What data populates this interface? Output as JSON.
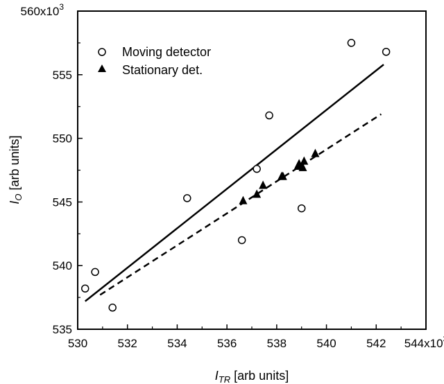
{
  "chart_data": {
    "type": "scatter",
    "xlabel_main": "I",
    "xlabel_sub": "TR",
    "xlabel_rest": " [arb units]",
    "ylabel_main": "I",
    "ylabel_sub": "O",
    "ylabel_rest": " [arb units]",
    "xlim": [
      530,
      544
    ],
    "ylim": [
      535,
      560
    ],
    "x_ticks": [
      530,
      532,
      534,
      536,
      538,
      540,
      542,
      544
    ],
    "x_tick_labels": [
      "530",
      "532",
      "534",
      "536",
      "538",
      "540",
      "542",
      "544x10"
    ],
    "x_tick_exponent": "3",
    "y_ticks": [
      535,
      540,
      545,
      550,
      555,
      560
    ],
    "y_tick_labels": [
      "535",
      "540",
      "545",
      "550",
      "555",
      "560x10"
    ],
    "y_tick_exponent": "3",
    "legend_position": "top-left",
    "series": [
      {
        "name": "Moving detector",
        "marker": "open-circle",
        "x": [
          530.3,
          530.7,
          531.4,
          534.4,
          536.6,
          537.2,
          537.7,
          539.0,
          541.0,
          542.4
        ],
        "y": [
          538.2,
          539.5,
          536.7,
          545.3,
          542.0,
          547.6,
          551.8,
          544.5,
          557.5,
          556.8
        ]
      },
      {
        "name": "Stationary det.",
        "marker": "filled-triangle",
        "x": [
          536.65,
          537.2,
          537.45,
          538.2,
          538.25,
          538.85,
          538.9,
          539.05,
          539.1,
          539.55
        ],
        "y": [
          545.1,
          545.6,
          546.3,
          547.0,
          547.0,
          547.8,
          548.0,
          547.7,
          548.2,
          548.8
        ]
      }
    ],
    "fits": [
      {
        "series": "Moving detector",
        "style": "solid",
        "x": [
          530.3,
          542.3
        ],
        "y": [
          537.2,
          555.8
        ]
      },
      {
        "series": "Stationary det.",
        "style": "dashed",
        "x": [
          530.9,
          542.2
        ],
        "y": [
          537.7,
          551.9
        ]
      }
    ],
    "grid": false
  }
}
